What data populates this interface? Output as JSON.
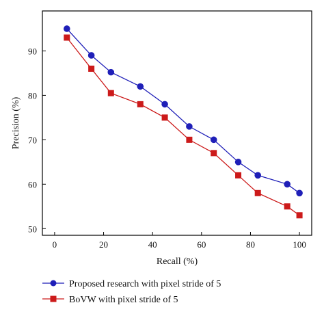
{
  "chart_data": {
    "type": "line",
    "xlabel": "Recall (%)",
    "ylabel": "Precision (%)",
    "xlim": [
      -5,
      105
    ],
    "ylim": [
      48.5,
      99
    ],
    "xticks": [
      "0",
      "20",
      "40",
      "60",
      "80",
      "100"
    ],
    "yticks": [
      "50",
      "60",
      "70",
      "80",
      "90"
    ],
    "grid": false,
    "legend_placement": "bottom",
    "series": [
      {
        "name": "Proposed research with pixel stride of 5",
        "color": "#1f1fb8",
        "marker": "circle",
        "x": [
          5,
          15,
          23,
          35,
          45,
          55,
          65,
          75,
          83,
          95,
          100
        ],
        "y": [
          95,
          89,
          85.2,
          82,
          78,
          73,
          70,
          65,
          62,
          60,
          58
        ]
      },
      {
        "name": "BoVW with pixel stride of 5",
        "color": "#cc1a1a",
        "marker": "square",
        "x": [
          5,
          15,
          23,
          35,
          45,
          55,
          65,
          75,
          83,
          95,
          100
        ],
        "y": [
          93,
          86,
          80.5,
          78,
          75,
          70,
          67,
          62,
          58,
          55,
          53
        ]
      }
    ]
  }
}
